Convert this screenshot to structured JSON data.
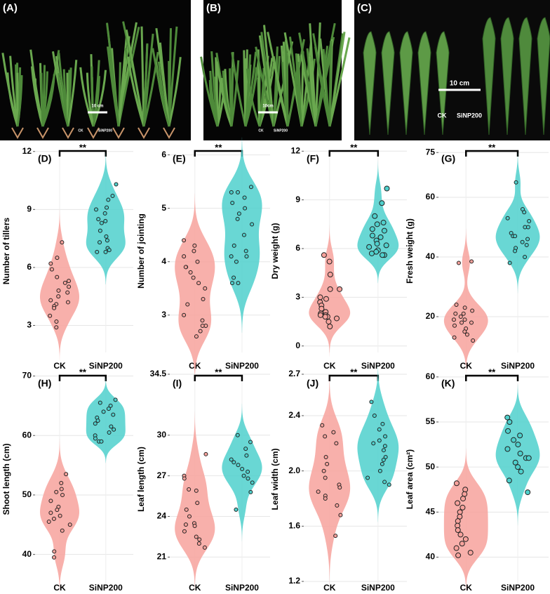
{
  "photos": [
    {
      "label": "(A)",
      "scale": "10 cm",
      "groups": [
        "CK",
        "SiNP200"
      ]
    },
    {
      "label": "(B)",
      "scale": "10cm",
      "groups": [
        "CK",
        "SiNP200"
      ]
    },
    {
      "label": "(C)",
      "scale": "10 cm",
      "groups": [
        "CK",
        "SiNP200"
      ]
    }
  ],
  "chart_data": [
    {
      "type": "violin",
      "panel": "(D)",
      "ylabel": "Number of tillers",
      "annotation": "**",
      "categories": [
        "CK",
        "SiNP200"
      ],
      "grid": true,
      "groups": [
        {
          "color": "#f7a29c",
          "values": [
            7.3,
            6.5,
            6.2,
            5.9,
            5.5,
            5.3,
            5.2,
            5.0,
            4.8,
            4.7,
            4.5,
            4.3,
            4.2,
            4.1,
            4.0,
            3.9,
            3.5,
            3.2,
            2.9
          ]
        },
        {
          "color": "#4fd0cc",
          "values": [
            10.3,
            9.7,
            9.5,
            9.1,
            9.0,
            8.8,
            8.5,
            8.4,
            8.3,
            7.9,
            7.6,
            7.4,
            7.3,
            7.0,
            6.9,
            6.8,
            6.8
          ]
        }
      ],
      "ylim": [
        1.6,
        12.1
      ],
      "yticks": [
        3,
        6,
        9,
        12
      ]
    },
    {
      "type": "violin",
      "panel": "(E)",
      "ylabel": "Number of jointing",
      "annotation": "**",
      "categories": [
        "CK",
        "SiNP200"
      ],
      "grid": true,
      "groups": [
        {
          "color": "#f7a29c",
          "values": [
            4.4,
            4.3,
            4.2,
            4.1,
            4.0,
            3.9,
            3.9,
            3.8,
            3.7,
            3.6,
            3.5,
            3.3,
            3.2,
            3.0,
            2.9,
            2.8,
            2.8,
            2.7,
            2.6
          ]
        },
        {
          "color": "#4fd0cc",
          "values": [
            5.4,
            5.3,
            5.3,
            5.2,
            5.1,
            5.0,
            4.9,
            4.8,
            4.7,
            4.5,
            4.3,
            4.2,
            4.1,
            4.1,
            4.0,
            3.7,
            3.6,
            3.6
          ]
        }
      ],
      "ylim": [
        2.3,
        6.1
      ],
      "yticks": [
        3,
        4,
        5,
        6
      ]
    },
    {
      "type": "violin",
      "panel": "(F)",
      "ylabel": "Dry weight (g)",
      "annotation": "**",
      "categories": [
        "CK",
        "SiNP200"
      ],
      "grid": true,
      "groups": [
        {
          "color": "#f7a29c",
          "values": [
            5.6,
            5.2,
            4.4,
            3.5,
            3.5,
            3.0,
            2.9,
            2.7,
            2.5,
            2.3,
            2.1,
            2.0,
            1.9,
            1.9,
            1.8,
            1.8,
            1.7,
            1.5,
            1.2
          ]
        },
        {
          "color": "#4fd0cc",
          "values": [
            9.7,
            8.8,
            8.0,
            7.6,
            7.5,
            7.2,
            7.1,
            6.8,
            6.7,
            6.5,
            6.3,
            6.2,
            6.1,
            5.9,
            5.8,
            5.7,
            5.6,
            5.6
          ]
        }
      ],
      "ylim": [
        -0.4,
        12.1
      ],
      "yticks": [
        0,
        3,
        6,
        9,
        12
      ]
    },
    {
      "type": "violin",
      "panel": "(G)",
      "ylabel": "Fresh weight (g)",
      "annotation": "**",
      "categories": [
        "CK",
        "SiNP200"
      ],
      "grid": true,
      "groups": [
        {
          "color": "#f7a29c",
          "values": [
            38,
            38.5,
            24,
            23,
            22,
            21,
            21,
            20,
            19,
            19,
            18,
            18,
            17,
            16,
            15,
            14,
            13,
            12
          ]
        },
        {
          "color": "#4fd0cc",
          "values": [
            65,
            56,
            55,
            53,
            52,
            50,
            50,
            48,
            47,
            47,
            46,
            45,
            44,
            43,
            42,
            40,
            38
          ]
        }
      ],
      "ylim": [
        8,
        76
      ],
      "yticks": [
        20,
        40,
        60,
        75
      ]
    },
    {
      "type": "violin",
      "panel": "(H)",
      "ylabel": "Shoot length (cm)",
      "annotation": "**",
      "categories": [
        "CK",
        "SiNP200"
      ],
      "grid": true,
      "groups": [
        {
          "color": "#f7a29c",
          "values": [
            53.5,
            52,
            51,
            50.5,
            50,
            49,
            48,
            47.5,
            47,
            46.5,
            46,
            45.5,
            45,
            44,
            40.5,
            39.5
          ]
        },
        {
          "color": "#4fd0cc",
          "values": [
            66,
            65.5,
            65,
            64.5,
            64,
            63.5,
            63,
            62.5,
            62,
            61.5,
            61,
            60.5,
            60,
            59.5,
            59,
            59
          ]
        }
      ],
      "ylim": [
        35,
        70.3
      ],
      "yticks": [
        40,
        50,
        60,
        70
      ]
    },
    {
      "type": "violin",
      "panel": "(I)",
      "ylabel": "Leaf length (cm)",
      "annotation": "**",
      "categories": [
        "CK",
        "SiNP200"
      ],
      "grid": true,
      "groups": [
        {
          "color": "#f7a29c",
          "values": [
            28.6,
            27,
            26.8,
            26,
            25.9,
            25,
            24.5,
            24,
            23.5,
            23.4,
            23.3,
            22.9,
            22.5,
            22.3,
            22,
            21.7
          ]
        },
        {
          "color": "#4fd0cc",
          "values": [
            30,
            29.5,
            29,
            28.5,
            28.2,
            28,
            27.8,
            27.5,
            27.3,
            27,
            26.8,
            26.5,
            25.8,
            24.5
          ]
        }
      ],
      "ylim": [
        19,
        34.5
      ],
      "yticks": [
        21,
        24,
        27,
        30,
        34.5
      ]
    },
    {
      "type": "violin",
      "panel": "(J)",
      "ylabel": "Leaf width (cm)",
      "annotation": "**",
      "categories": [
        "CK",
        "SiNP200"
      ],
      "grid": true,
      "groups": [
        {
          "color": "#f7a29c",
          "values": [
            2.33,
            2.28,
            2.25,
            2.2,
            2.1,
            2.05,
            2.0,
            1.95,
            1.9,
            1.88,
            1.85,
            1.82,
            1.8,
            1.75,
            1.68,
            1.53
          ]
        },
        {
          "color": "#4fd0cc",
          "values": [
            2.5,
            2.4,
            2.34,
            2.3,
            2.25,
            2.22,
            2.2,
            2.18,
            2.15,
            2.1,
            2.08,
            2.05,
            2.0,
            1.95,
            1.92,
            1.9
          ]
        }
      ],
      "ylim": [
        1.18,
        2.7
      ],
      "yticks": [
        {
          "value": 1.2,
          "label": "1.2"
        },
        {
          "value": 1.6,
          "label": "1.6"
        },
        {
          "value": 2,
          "label": "2.0"
        },
        {
          "value": 2.4,
          "label": "2.4"
        },
        {
          "value": 2.7,
          "label": "2.7"
        }
      ]
    },
    {
      "type": "violin",
      "panel": "(K)",
      "ylabel": "Leaf area (cm²)",
      "annotation": "**",
      "categories": [
        "CK",
        "SiNP200"
      ],
      "grid": true,
      "groups": [
        {
          "color": "#f7a29c",
          "values": [
            48.2,
            47.5,
            47,
            46.5,
            46,
            45.5,
            45,
            44.5,
            44,
            43.5,
            43,
            42.5,
            42,
            41.5,
            41,
            40.5,
            40.2
          ]
        },
        {
          "color": "#4fd0cc",
          "values": [
            55.5,
            55,
            54,
            53.5,
            53,
            52.5,
            52,
            51.5,
            51,
            51,
            50.5,
            50,
            49.5,
            48.5,
            47.2
          ]
        }
      ],
      "ylim": [
        37,
        60.3
      ],
      "yticks": [
        40,
        45,
        50,
        55,
        60
      ]
    }
  ]
}
